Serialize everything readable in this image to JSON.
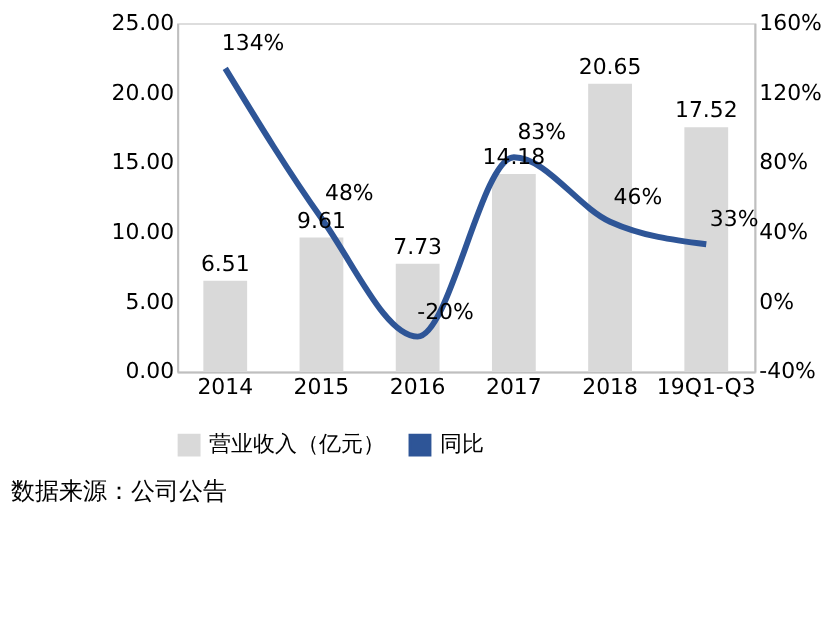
{
  "chart_data": {
    "type": "bar",
    "categories": [
      "2014",
      "2015",
      "2016",
      "2017",
      "2018",
      "19Q1-Q3"
    ],
    "series": [
      {
        "name": "营业收入（亿元）",
        "color": "#d9d9d9",
        "values": [
          6.51,
          9.61,
          7.73,
          14.18,
          20.65,
          17.52
        ],
        "value_labels": [
          "6.51",
          "9.61",
          "7.73",
          "14.18",
          "20.65",
          "17.52"
        ]
      },
      {
        "name": "同比",
        "type": "line",
        "axis": "y2",
        "color": "#2e5597",
        "values": [
          134,
          48,
          -20,
          83,
          46,
          33
        ],
        "value_labels": [
          "134%",
          "48%",
          "-20%",
          "83%",
          "46%",
          "33%"
        ]
      }
    ],
    "ylim": [
      0,
      25
    ],
    "yticks": [
      {
        "value": 0,
        "label": "0.00"
      },
      {
        "value": 5,
        "label": "5.00"
      },
      {
        "value": 10,
        "label": "10.00"
      },
      {
        "value": 15,
        "label": "15.00"
      },
      {
        "value": 20,
        "label": "20.00"
      },
      {
        "value": 25,
        "label": "25.00"
      }
    ],
    "y2lim": [
      -40,
      160
    ],
    "y2ticks": [
      {
        "value": -40,
        "label": "-40%"
      },
      {
        "value": 0,
        "label": "0%"
      },
      {
        "value": 40,
        "label": "40%"
      },
      {
        "value": 80,
        "label": "80%"
      },
      {
        "value": 120,
        "label": "120%"
      },
      {
        "value": 160,
        "label": "160%"
      }
    ],
    "legend": "bottom",
    "grid": false,
    "annotations": [
      "数据来源：公司公告"
    ]
  }
}
